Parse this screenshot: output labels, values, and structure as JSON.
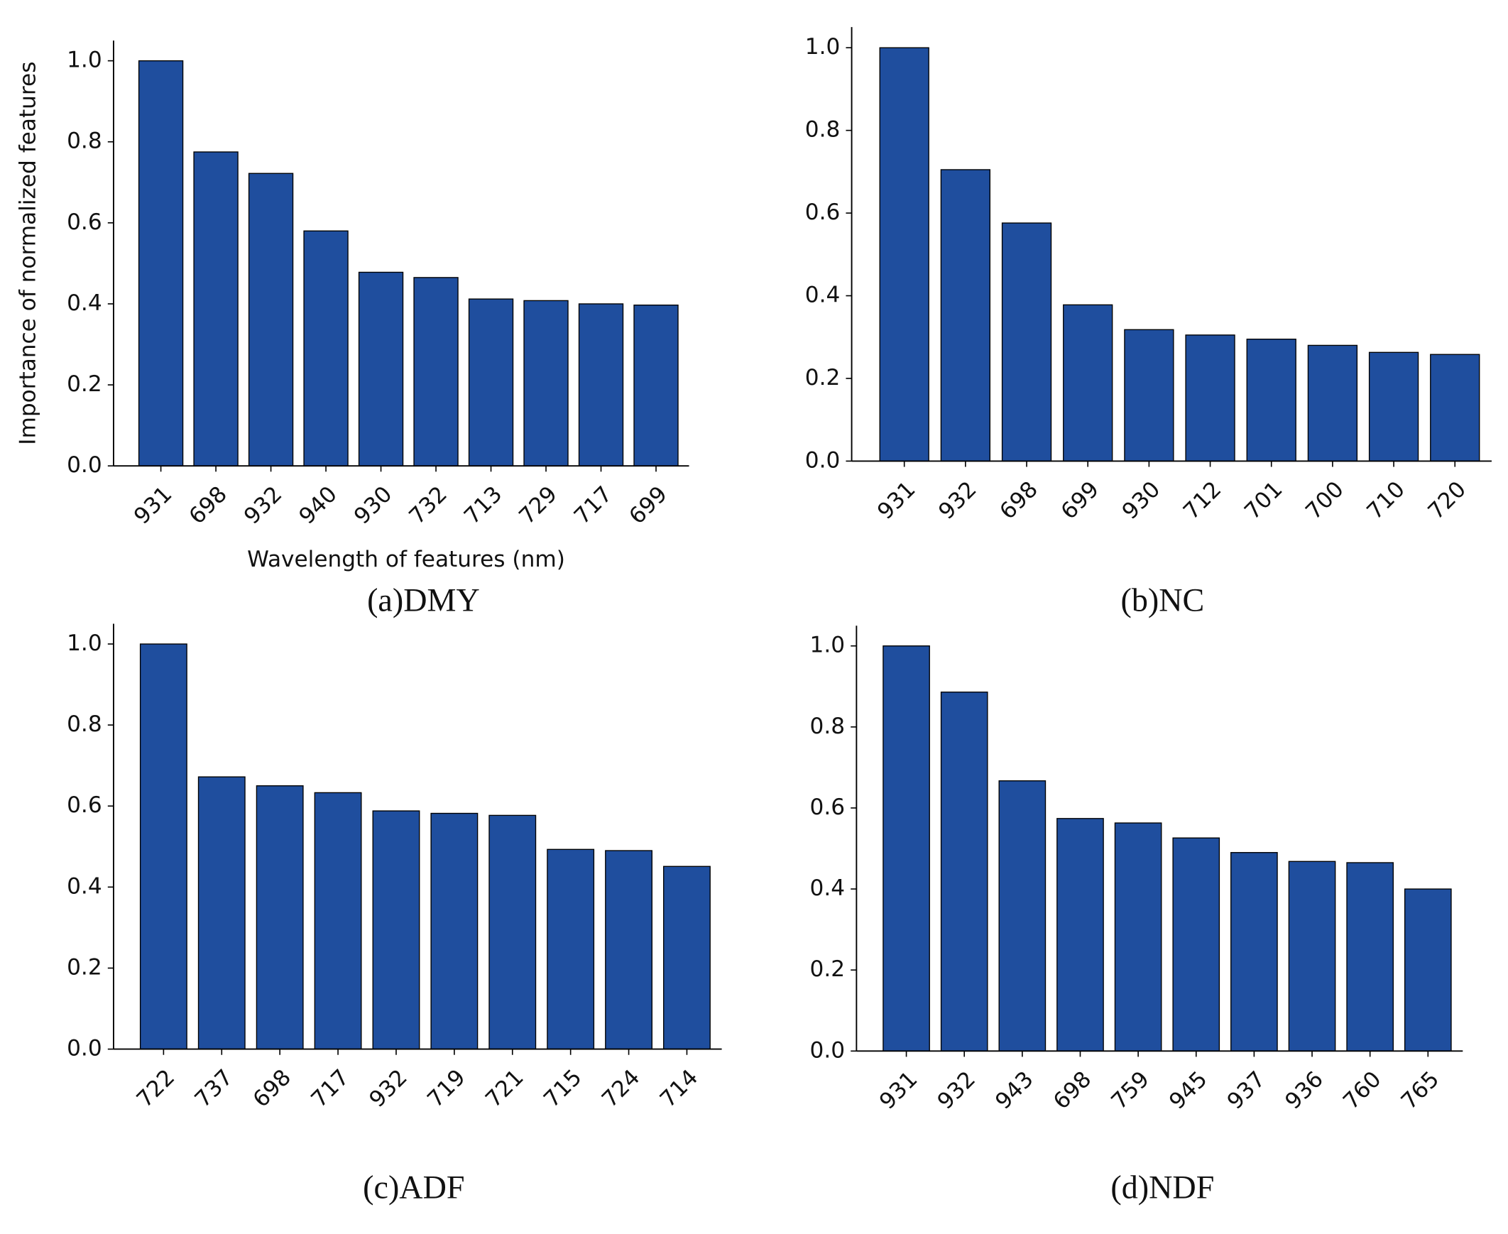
{
  "chart_data": [
    {
      "type": "bar",
      "title": "(a)DMY",
      "ylabel": "Importance of normalized features",
      "xlabel": "Wavelength of features (nm)",
      "categories": [
        "931",
        "698",
        "932",
        "940",
        "930",
        "732",
        "713",
        "729",
        "717",
        "699"
      ],
      "values": [
        1.0,
        0.775,
        0.722,
        0.58,
        0.478,
        0.465,
        0.412,
        0.408,
        0.4,
        0.397
      ],
      "color": "#1f4e9e",
      "ylim": [
        0,
        1.05
      ],
      "yticks": [
        {
          "value": 0,
          "label": "0.0"
        },
        0.2,
        0.4,
        0.6,
        0.8,
        {
          "value": 1,
          "label": "1.0"
        }
      ]
    },
    {
      "type": "bar",
      "title": "(b)NC",
      "categories": [
        "931",
        "932",
        "698",
        "699",
        "930",
        "712",
        "701",
        "700",
        "710",
        "720"
      ],
      "values": [
        1.0,
        0.705,
        0.576,
        0.378,
        0.318,
        0.305,
        0.295,
        0.28,
        0.263,
        0.258
      ],
      "color": "#1f4e9e",
      "ylim": [
        0,
        1.05
      ],
      "yticks": [
        {
          "value": 0,
          "label": "0.0"
        },
        0.2,
        0.4,
        0.6,
        0.8,
        {
          "value": 1,
          "label": "1.0"
        }
      ]
    },
    {
      "type": "bar",
      "title": "(c)ADF",
      "categories": [
        "722",
        "737",
        "698",
        "717",
        "932",
        "719",
        "721",
        "715",
        "724",
        "714"
      ],
      "values": [
        1.0,
        0.672,
        0.65,
        0.633,
        0.588,
        0.582,
        0.577,
        0.493,
        0.49,
        0.451
      ],
      "color": "#1f4e9e",
      "ylim": [
        0,
        1.05
      ],
      "yticks": [
        {
          "value": 0,
          "label": "0.0"
        },
        0.2,
        0.4,
        0.6,
        0.8,
        {
          "value": 1,
          "label": "1.0"
        }
      ]
    },
    {
      "type": "bar",
      "title": "(d)NDF",
      "categories": [
        "931",
        "932",
        "943",
        "698",
        "759",
        "945",
        "937",
        "936",
        "760",
        "765"
      ],
      "values": [
        1.0,
        0.886,
        0.667,
        0.574,
        0.563,
        0.526,
        0.49,
        0.468,
        0.465,
        0.4
      ],
      "color": "#1f4e9e",
      "ylim": [
        0,
        1.05
      ],
      "yticks": [
        {
          "value": 0,
          "label": "0.0"
        },
        0.2,
        0.4,
        0.6,
        0.8,
        {
          "value": 1,
          "label": "1.0"
        }
      ]
    }
  ]
}
